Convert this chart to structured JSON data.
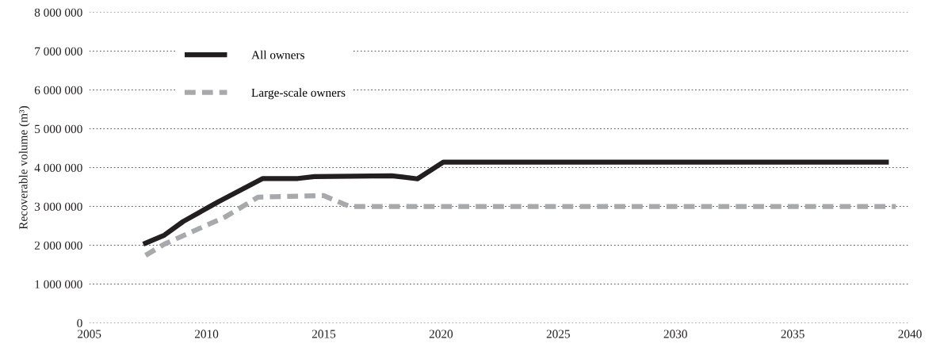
{
  "chart_data": {
    "type": "line",
    "ylabel": "Recoverable volume (m³)",
    "xlim": [
      2005,
      2040
    ],
    "xticks": [
      2005,
      2010,
      2015,
      2020,
      2025,
      2030,
      2035,
      2040
    ],
    "ylim": [
      0,
      8000000
    ],
    "yticks": [
      {
        "value": 0,
        "label": "0"
      },
      {
        "value": 1000000,
        "label": "1 000 000"
      },
      {
        "value": 2000000,
        "label": "2 000 000"
      },
      {
        "value": 3000000,
        "label": "3 000 000"
      },
      {
        "value": 4000000,
        "label": "4 000 000"
      },
      {
        "value": 5000000,
        "label": "5 000 000"
      },
      {
        "value": 6000000,
        "label": "6 000 000"
      },
      {
        "value": 7000000,
        "label": "7 000 000"
      },
      {
        "value": 8000000,
        "label": "8 000 000"
      }
    ],
    "grid": "y",
    "legend": "top left",
    "series": [
      {
        "name": "All owners",
        "color": "#231f20",
        "line_style": "solid",
        "x": [
          2007.3,
          2008.2,
          2009.0,
          2010.5,
          2012.4,
          2013.9,
          2014.6,
          2017.9,
          2019.0,
          2020.1,
          2039.1
        ],
        "values": [
          2030000,
          2260000,
          2610000,
          3120000,
          3720000,
          3720000,
          3770000,
          3790000,
          3710000,
          4140000,
          4140000
        ]
      },
      {
        "name": "Large-scale owners",
        "color": "#a7a9ac",
        "line_style": "dashed",
        "x": [
          2007.4,
          2008.2,
          2010.8,
          2012.2,
          2015.0,
          2015.5,
          2016.1,
          2039.4
        ],
        "values": [
          1740000,
          2030000,
          2730000,
          3240000,
          3280000,
          3150000,
          3000000,
          3000000
        ]
      }
    ]
  }
}
